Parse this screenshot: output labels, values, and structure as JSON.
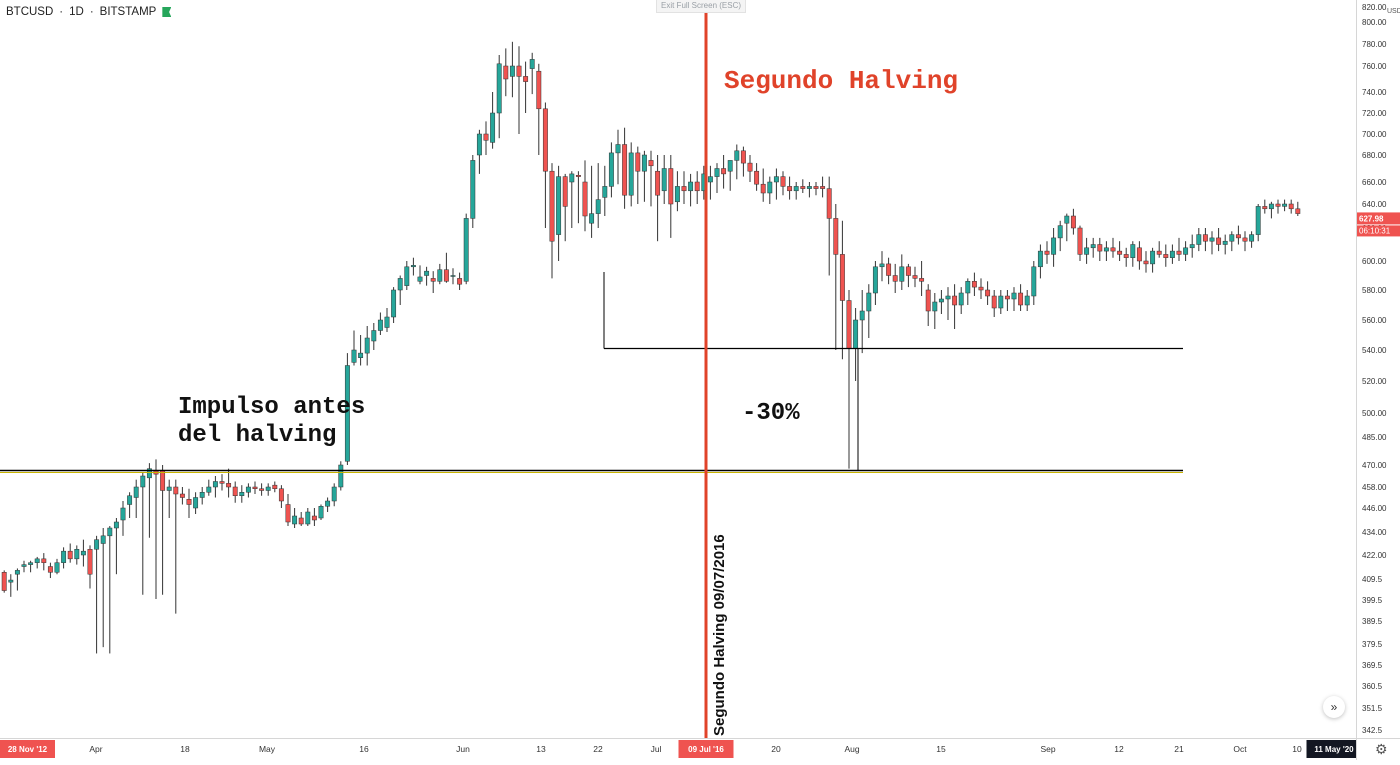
{
  "header": {
    "symbol": "BTCUSD",
    "interval": "1D",
    "exchange": "BITSTAMP",
    "separator": "·",
    "flag_color": "#26a65b"
  },
  "overlay": {
    "exit_fullscreen": "Exit Full Screen (ESC)"
  },
  "annotations": {
    "title": "Segundo Halving",
    "impulse": "Impulso antes\ndel halving",
    "drawdown": "-30%",
    "halving_date_label": "Segundo Halving 09/07/2016"
  },
  "price_axis": {
    "unit": "USD",
    "ticks": [
      "820.00",
      "800.00",
      "780.00",
      "760.00",
      "740.00",
      "720.00",
      "700.00",
      "680.00",
      "660.00",
      "640.00",
      "620.00",
      "600.00",
      "580.00",
      "560.00",
      "540.00",
      "520.00",
      "500.00",
      "485.00",
      "470.00",
      "458.00",
      "446.00",
      "434.00",
      "422.00",
      "409.5",
      "399.5",
      "389.5",
      "379.5",
      "369.5",
      "360.5",
      "351.5",
      "342.5"
    ],
    "last_price_label": {
      "symbol": "BTCUSD",
      "price": "627.98",
      "countdown": "06:10:31",
      "color": "#ef5350"
    }
  },
  "time_axis": {
    "labels": [
      "28 Nov '12",
      "Apr",
      "18",
      "May",
      "16",
      "Jun",
      "13",
      "22",
      "Jul",
      "09 Jul '16",
      "20",
      "Aug",
      "15",
      "Sep",
      "12",
      "21",
      "Oct",
      "10",
      "11 May '20"
    ],
    "highlight_color": "#ef5350"
  },
  "controls": {
    "scroll_icon": "»",
    "settings_icon": "⚙"
  },
  "colors": {
    "up": "#26a69a",
    "down": "#ef5350",
    "halving_line": "#e0432a",
    "support_line": "#000000",
    "support_accent": "#c8b400"
  },
  "chart_data": {
    "type": "candlestick",
    "symbol": "BTCUSD",
    "interval": "1D",
    "halving_date": "09 Jul '16",
    "support_levels": [
      541,
      467
    ],
    "candles": [
      [
        413,
        414,
        403,
        404
      ],
      [
        408,
        412,
        401,
        409
      ],
      [
        412,
        415,
        404,
        414
      ],
      [
        416,
        419,
        413,
        417
      ],
      [
        417,
        419,
        413,
        418
      ],
      [
        418,
        421,
        415,
        420
      ],
      [
        420,
        423,
        414,
        418
      ],
      [
        416,
        418,
        410,
        413
      ],
      [
        413,
        420,
        412,
        418
      ],
      [
        418,
        426,
        415,
        424
      ],
      [
        424,
        428,
        418,
        420
      ],
      [
        420,
        427,
        417,
        425
      ],
      [
        422,
        430,
        416,
        424
      ],
      [
        425,
        427,
        405,
        412
      ],
      [
        425,
        432,
        375,
        430
      ],
      [
        428,
        436,
        378,
        432
      ],
      [
        432,
        437,
        375,
        436
      ],
      [
        436,
        441,
        412,
        439
      ],
      [
        440,
        450,
        432,
        446
      ],
      [
        448,
        455,
        441,
        453
      ],
      [
        452,
        462,
        441,
        458
      ],
      [
        458,
        466,
        402,
        464
      ],
      [
        463,
        471,
        431,
        468
      ],
      [
        467,
        473,
        400,
        465
      ],
      [
        467,
        470,
        402,
        456
      ],
      [
        456,
        462,
        441,
        458
      ],
      [
        458,
        462,
        393,
        454
      ],
      [
        454,
        458,
        448,
        452
      ],
      [
        451,
        457,
        441,
        448
      ],
      [
        446,
        455,
        443,
        452
      ],
      [
        452,
        458,
        448,
        455
      ],
      [
        455,
        462,
        453,
        458
      ],
      [
        458,
        464,
        452,
        461
      ],
      [
        461,
        465,
        456,
        460
      ],
      [
        460,
        468,
        452,
        458
      ],
      [
        458,
        461,
        449,
        453
      ],
      [
        453,
        459,
        449,
        455
      ],
      [
        455,
        460,
        452,
        458
      ],
      [
        458,
        461,
        454,
        457
      ],
      [
        457,
        460,
        453,
        456
      ],
      [
        456,
        460,
        453,
        458
      ],
      [
        459,
        461,
        455,
        457
      ],
      [
        457,
        459,
        446,
        450
      ],
      [
        448,
        454,
        437,
        439
      ],
      [
        438,
        446,
        436,
        442
      ],
      [
        441,
        444,
        437,
        438
      ],
      [
        438,
        446,
        437,
        444
      ],
      [
        442,
        446,
        437,
        440
      ],
      [
        441,
        448,
        440,
        447
      ],
      [
        447,
        452,
        444,
        450
      ],
      [
        450,
        460,
        447,
        458
      ],
      [
        458,
        472,
        456,
        470
      ],
      [
        472,
        538,
        470,
        530
      ],
      [
        532,
        553,
        530,
        540
      ],
      [
        535,
        550,
        530,
        538
      ],
      [
        538,
        556,
        530,
        548
      ],
      [
        546,
        558,
        540,
        553
      ],
      [
        553,
        565,
        550,
        560
      ],
      [
        555,
        568,
        552,
        562
      ],
      [
        562,
        582,
        558,
        580
      ],
      [
        580,
        590,
        570,
        588
      ],
      [
        583,
        600,
        580,
        596
      ],
      [
        596,
        602,
        590,
        597
      ],
      [
        586,
        597,
        584,
        589
      ],
      [
        590,
        596,
        583,
        593
      ],
      [
        588,
        593,
        578,
        586
      ],
      [
        586,
        598,
        584,
        594
      ],
      [
        594,
        605,
        585,
        586
      ],
      [
        590,
        595,
        584,
        590
      ],
      [
        588,
        592,
        580,
        584
      ],
      [
        586,
        632,
        584,
        628
      ],
      [
        628,
        680,
        620,
        676
      ],
      [
        680,
        704,
        666,
        700
      ],
      [
        700,
        712,
        680,
        694
      ],
      [
        692,
        740,
        686,
        720
      ],
      [
        720,
        770,
        696,
        762
      ],
      [
        760,
        776,
        736,
        750
      ],
      [
        752,
        782,
        735,
        760
      ],
      [
        760,
        778,
        700,
        752
      ],
      [
        752,
        764,
        720,
        748
      ],
      [
        758,
        772,
        738,
        766
      ],
      [
        756,
        762,
        680,
        724
      ],
      [
        724,
        730,
        620,
        668
      ],
      [
        668,
        674,
        588,
        612
      ],
      [
        616,
        672,
        600,
        664
      ],
      [
        664,
        666,
        612,
        638
      ],
      [
        660,
        668,
        620,
        666
      ],
      [
        665,
        668,
        624,
        664
      ],
      [
        660,
        676,
        618,
        630
      ],
      [
        624,
        672,
        614,
        632
      ],
      [
        632,
        674,
        620,
        644
      ],
      [
        646,
        672,
        630,
        656
      ],
      [
        656,
        692,
        646,
        682
      ],
      [
        682,
        704,
        658,
        690
      ],
      [
        690,
        706,
        636,
        648
      ],
      [
        648,
        692,
        638,
        682
      ],
      [
        682,
        688,
        640,
        668
      ],
      [
        668,
        684,
        642,
        680
      ],
      [
        676,
        684,
        638,
        672
      ],
      [
        668,
        680,
        612,
        648
      ],
      [
        652,
        680,
        640,
        670
      ],
      [
        670,
        680,
        614,
        640
      ],
      [
        642,
        668,
        634,
        656
      ],
      [
        656,
        668,
        640,
        652
      ],
      [
        652,
        666,
        638,
        660
      ],
      [
        660,
        668,
        640,
        652
      ],
      [
        652,
        672,
        644,
        666
      ],
      [
        660,
        672,
        644,
        664
      ],
      [
        664,
        674,
        650,
        670
      ],
      [
        670,
        680,
        654,
        666
      ],
      [
        668,
        676,
        652,
        676
      ],
      [
        676,
        690,
        662,
        684
      ],
      [
        684,
        688,
        664,
        674
      ],
      [
        674,
        680,
        660,
        668
      ],
      [
        668,
        674,
        652,
        658
      ],
      [
        658,
        670,
        642,
        650
      ],
      [
        650,
        664,
        640,
        660
      ],
      [
        660,
        670,
        644,
        664
      ],
      [
        664,
        668,
        648,
        656
      ],
      [
        656,
        664,
        644,
        652
      ],
      [
        652,
        660,
        644,
        656
      ],
      [
        656,
        662,
        650,
        654
      ],
      [
        654,
        660,
        646,
        656
      ],
      [
        656,
        660,
        648,
        654
      ],
      [
        656,
        664,
        646,
        654
      ],
      [
        654,
        664,
        590,
        628
      ],
      [
        628,
        640,
        540,
        604
      ],
      [
        604,
        626,
        534,
        573
      ],
      [
        573,
        580,
        468,
        541
      ],
      [
        541,
        568,
        520,
        560
      ],
      [
        560,
        580,
        538,
        566
      ],
      [
        566,
        584,
        548,
        578
      ],
      [
        578,
        600,
        570,
        596
      ],
      [
        596,
        606,
        586,
        598
      ],
      [
        598,
        602,
        584,
        590
      ],
      [
        590,
        598,
        578,
        586
      ],
      [
        586,
        604,
        580,
        596
      ],
      [
        596,
        598,
        582,
        590
      ],
      [
        590,
        596,
        582,
        588
      ],
      [
        588,
        600,
        576,
        586
      ],
      [
        580,
        584,
        556,
        566
      ],
      [
        566,
        578,
        554,
        572
      ],
      [
        572,
        580,
        564,
        574
      ],
      [
        574,
        582,
        560,
        576
      ],
      [
        576,
        584,
        554,
        570
      ],
      [
        570,
        582,
        564,
        578
      ],
      [
        578,
        588,
        570,
        586
      ],
      [
        586,
        592,
        576,
        582
      ],
      [
        582,
        588,
        574,
        580
      ],
      [
        580,
        586,
        570,
        576
      ],
      [
        576,
        580,
        562,
        568
      ],
      [
        568,
        580,
        564,
        576
      ],
      [
        576,
        580,
        566,
        574
      ],
      [
        574,
        582,
        566,
        578
      ],
      [
        578,
        584,
        566,
        570
      ],
      [
        570,
        580,
        566,
        576
      ],
      [
        576,
        600,
        570,
        596
      ],
      [
        596,
        610,
        588,
        606
      ],
      [
        606,
        612,
        598,
        604
      ],
      [
        604,
        620,
        596,
        614
      ],
      [
        614,
        626,
        606,
        622
      ],
      [
        624,
        632,
        612,
        630
      ],
      [
        630,
        636,
        616,
        620
      ],
      [
        620,
        622,
        600,
        604
      ],
      [
        604,
        614,
        598,
        608
      ],
      [
        608,
        614,
        602,
        610
      ],
      [
        610,
        614,
        600,
        606
      ],
      [
        606,
        612,
        600,
        608
      ],
      [
        608,
        614,
        602,
        606
      ],
      [
        606,
        612,
        600,
        604
      ],
      [
        604,
        608,
        596,
        602
      ],
      [
        602,
        612,
        596,
        610
      ],
      [
        608,
        612,
        594,
        600
      ],
      [
        600,
        606,
        592,
        598
      ],
      [
        598,
        608,
        592,
        606
      ],
      [
        606,
        612,
        602,
        604
      ],
      [
        604,
        610,
        596,
        602
      ],
      [
        602,
        610,
        598,
        606
      ],
      [
        606,
        614,
        600,
        604
      ],
      [
        604,
        612,
        600,
        608
      ],
      [
        608,
        616,
        602,
        610
      ],
      [
        610,
        620,
        606,
        616
      ],
      [
        616,
        620,
        606,
        612
      ],
      [
        612,
        618,
        604,
        614
      ],
      [
        614,
        620,
        606,
        610
      ],
      [
        610,
        616,
        604,
        612
      ],
      [
        612,
        618,
        606,
        616
      ],
      [
        616,
        622,
        610,
        614
      ],
      [
        614,
        618,
        606,
        612
      ],
      [
        612,
        618,
        608,
        616
      ],
      [
        616,
        640,
        612,
        638
      ],
      [
        638,
        644,
        632,
        636
      ],
      [
        636,
        642,
        628,
        640
      ],
      [
        640,
        644,
        632,
        638
      ],
      [
        638,
        644,
        634,
        640
      ],
      [
        640,
        644,
        632,
        636
      ],
      [
        636,
        642,
        630,
        632
      ]
    ]
  }
}
